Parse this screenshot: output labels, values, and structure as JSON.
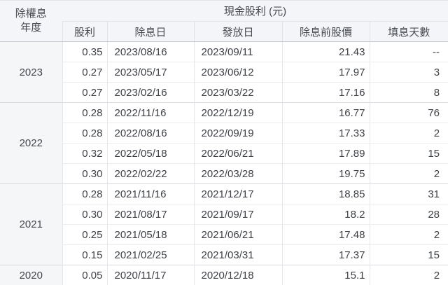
{
  "table": {
    "header": {
      "year_line1": "除權息",
      "year_line2": "年度",
      "group_title": "現金股利 (元)",
      "columns": [
        "股利",
        "除息日",
        "發放日",
        "除息前股價",
        "填息天數"
      ]
    },
    "groups": [
      {
        "year": "2023",
        "rows": [
          {
            "dividend": "0.35",
            "ex_date": "2023/08/16",
            "pay_date": "2023/09/11",
            "price": "21.43",
            "days": "--"
          },
          {
            "dividend": "0.27",
            "ex_date": "2023/05/17",
            "pay_date": "2023/06/12",
            "price": "17.97",
            "days": "3"
          },
          {
            "dividend": "0.27",
            "ex_date": "2023/02/16",
            "pay_date": "2023/03/22",
            "price": "17.16",
            "days": "8"
          }
        ]
      },
      {
        "year": "2022",
        "rows": [
          {
            "dividend": "0.28",
            "ex_date": "2022/11/16",
            "pay_date": "2022/12/19",
            "price": "16.77",
            "days": "76"
          },
          {
            "dividend": "0.28",
            "ex_date": "2022/08/16",
            "pay_date": "2022/09/19",
            "price": "17.33",
            "days": "2"
          },
          {
            "dividend": "0.32",
            "ex_date": "2022/05/18",
            "pay_date": "2022/06/21",
            "price": "17.89",
            "days": "15"
          },
          {
            "dividend": "0.30",
            "ex_date": "2022/02/22",
            "pay_date": "2022/03/28",
            "price": "19.75",
            "days": "2"
          }
        ]
      },
      {
        "year": "2021",
        "rows": [
          {
            "dividend": "0.28",
            "ex_date": "2021/11/16",
            "pay_date": "2021/12/17",
            "price": "18.85",
            "days": "31"
          },
          {
            "dividend": "0.30",
            "ex_date": "2021/08/17",
            "pay_date": "2021/09/17",
            "price": "18.2",
            "days": "28"
          },
          {
            "dividend": "0.25",
            "ex_date": "2021/05/18",
            "pay_date": "2021/06/21",
            "price": "17.48",
            "days": "2"
          },
          {
            "dividend": "0.15",
            "ex_date": "2021/02/25",
            "pay_date": "2021/03/31",
            "price": "17.37",
            "days": "15"
          }
        ]
      },
      {
        "year": "2020",
        "rows": [
          {
            "dividend": "0.05",
            "ex_date": "2020/11/17",
            "pay_date": "2020/12/18",
            "price": "15.1",
            "days": "2"
          }
        ]
      }
    ]
  },
  "colors": {
    "header_bg": "#f4f5f8",
    "year_cell_bg": "#f5f6f8",
    "header_divider": "#c3c6cc",
    "group_divider": "#d7d9de",
    "row_divider": "#eceef1",
    "text": "#3e4147"
  }
}
